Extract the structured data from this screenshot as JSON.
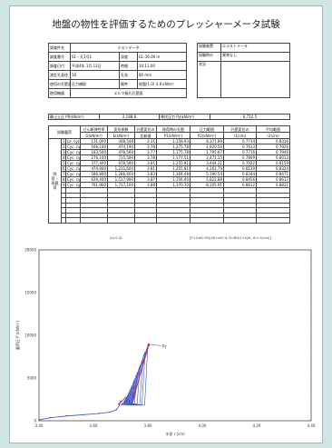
{
  "document": {
    "title": "地盤の物性を評価するためのプレッシャーメータ試験"
  },
  "header_left": {
    "rows": [
      {
        "label": "調査件名",
        "value": "テストデータ",
        "label2": "",
        "value2": ""
      },
      {
        "label": "調査番号",
        "value": "S1・孔1号1",
        "label2": "深度",
        "value2": "GL-16.00 m"
      },
      {
        "label": "調査日付",
        "value": "平成4年 1月 13日",
        "label2": "時間",
        "value2": "10:11:00"
      },
      {
        "label": "測定孔直径",
        "value": "16",
        "label2": "孔長",
        "value2": "80 mm"
      },
      {
        "label": "使用の孔壁面",
        "value": "圧力補助",
        "label2": "備考",
        "value2": "地盤(1.0) 4.8 kN/m³"
      },
      {
        "label": "使用機器",
        "value": "エルマ級孔孔壁面",
        "label2": "",
        "value2": ""
      }
    ]
  },
  "header_right": {
    "rows": [
      {
        "label": "試験装置",
        "value": "エラストメータ"
      },
      {
        "label": "試験時の",
        "value": "異常なし"
      },
      {
        "label": "状況",
        "value": ""
      }
    ]
  },
  "pf_row": {
    "label_left": "静止土圧 P0(kN/m²)",
    "value_left": "2,188.8",
    "label_right": "降伏圧力 Py(kN/m²)",
    "value_right": "8,712.5"
  },
  "main_table": {
    "col_headers": [
      [
        "試験載荷",
        ""
      ],
      [
        "せん断弾性率",
        "G(kN/m²)"
      ],
      [
        "変形係数",
        "E(kN/m²)"
      ],
      [
        "孔壁変位の",
        "比較値"
      ],
      [
        "除荷時の孔壁",
        "P1(kN/m²)"
      ],
      [
        "圧力範囲",
        "P2(kN/m²)"
      ],
      [
        "孔壁変位の",
        "r1(cm)"
      ],
      [
        "平均範囲",
        "r2(cm)"
      ]
    ],
    "side_label": "除荷・再載荷",
    "rows": [
      [
        "1",
        "Lo. cyc",
        "131,000",
        "348,548",
        "3.31",
        "1,158.93",
        "8,371.89",
        "0.7734",
        "0.8316"
      ],
      [
        "2",
        "Cyc. cyc",
        "166,100",
        "474,190",
        "3.78",
        "1,275.78",
        "1,920.50",
        "0.7613",
        "0.7926"
      ],
      [
        "3",
        "Cyc. cyc",
        "183,500",
        "478,590",
        "3.77",
        "1,175.78",
        "1,795.67",
        "0.7716",
        "0.7946"
      ],
      [
        "4",
        "Cyc. cyc",
        "276,100",
        "715,590",
        "3.78",
        "1,177.51",
        "2,471.15",
        "0.7809",
        "0.8013"
      ],
      [
        "5",
        "Cyc. cyc",
        "377,400",
        "978,590",
        "3.81",
        "1,255.81",
        "3,404.21",
        "0.7922",
        "0.8159"
      ],
      [
        "6",
        "Cyc. cyc",
        "474,800",
        "1,231,600",
        "3.81",
        "1,255.81",
        "4,261.79",
        "0.8129",
        "0.8324"
      ],
      [
        "7",
        "Cyc. cyc",
        "586,800",
        "1,286,600",
        "3.83",
        "1,304.48",
        "5,190.54",
        "0.8344",
        "0.8471"
      ],
      [
        "8",
        "Cyc. cyc",
        "629,400",
        "1,537,900",
        "3.87",
        "1,356.40",
        "5,822.88",
        "0.8456",
        "0.8617"
      ],
      [
        "9",
        "Cyc. cyc",
        "781,900",
        "1,737,100",
        "3.88",
        "1,370.70",
        "8,105.91",
        "0.8612",
        "0.8811"
      ]
    ],
    "empty_rows": 7
  },
  "notes": {
    "unit_note": "(ν=0.3)",
    "formula_note": "[P=4 πG·V0/(V0+ΔV)·d, D=8G(1+ν)/E, Δ=r·k(cm)]"
  },
  "chart_data": {
    "type": "line",
    "ylabel": "載荷圧 P (kN/m²)",
    "xlabel": "半径 r (cm)",
    "xlim": [
      3.4,
      4.4
    ],
    "ylim": [
      0,
      20000
    ],
    "x_ticks": [
      "3.40",
      "3.60",
      "3.80",
      "4.00",
      "4.20",
      "4.40"
    ],
    "y_ticks": [
      "0",
      "5000",
      "10000",
      "15000",
      "20000"
    ],
    "grid": true,
    "annotation": "Py",
    "series": [
      {
        "name": "",
        "color": "#3a52c4",
        "values": [
          [
            3.4,
            100
          ],
          [
            3.44,
            350
          ],
          [
            3.5,
            550
          ],
          [
            3.56,
            700
          ],
          [
            3.62,
            850
          ],
          [
            3.66,
            1000
          ],
          [
            3.685,
            1300
          ],
          [
            3.695,
            1800
          ],
          [
            3.7,
            2300
          ]
        ]
      }
    ],
    "cycles": {
      "color": "#3a52c4",
      "loops": [
        {
          "x0": 3.7,
          "x1": 3.722,
          "p0": 1800,
          "p1": 2500
        },
        {
          "x0": 3.705,
          "x1": 3.732,
          "p0": 1800,
          "p1": 3300
        },
        {
          "x0": 3.71,
          "x1": 3.742,
          "p0": 1800,
          "p1": 4100
        },
        {
          "x0": 3.715,
          "x1": 3.752,
          "p0": 1800,
          "p1": 4900
        },
        {
          "x0": 3.72,
          "x1": 3.762,
          "p0": 1800,
          "p1": 5700
        },
        {
          "x0": 3.725,
          "x1": 3.772,
          "p0": 1800,
          "p1": 6500
        },
        {
          "x0": 3.73,
          "x1": 3.782,
          "p0": 1800,
          "p1": 7300
        },
        {
          "x0": 3.735,
          "x1": 3.79,
          "p0": 1800,
          "p1": 8100
        },
        {
          "x0": 3.74,
          "x1": 3.8,
          "p0": 1800,
          "p1": 8800
        }
      ]
    },
    "red_fit": {
      "color": "#e02020",
      "points": [
        [
          3.69,
          1900
        ],
        [
          3.705,
          2300
        ],
        [
          3.72,
          2800
        ]
      ],
      "py_line": [
        [
          3.745,
          2500
        ],
        [
          3.805,
          9000
        ]
      ],
      "py_marker": [
        3.803,
        8900
      ]
    }
  }
}
